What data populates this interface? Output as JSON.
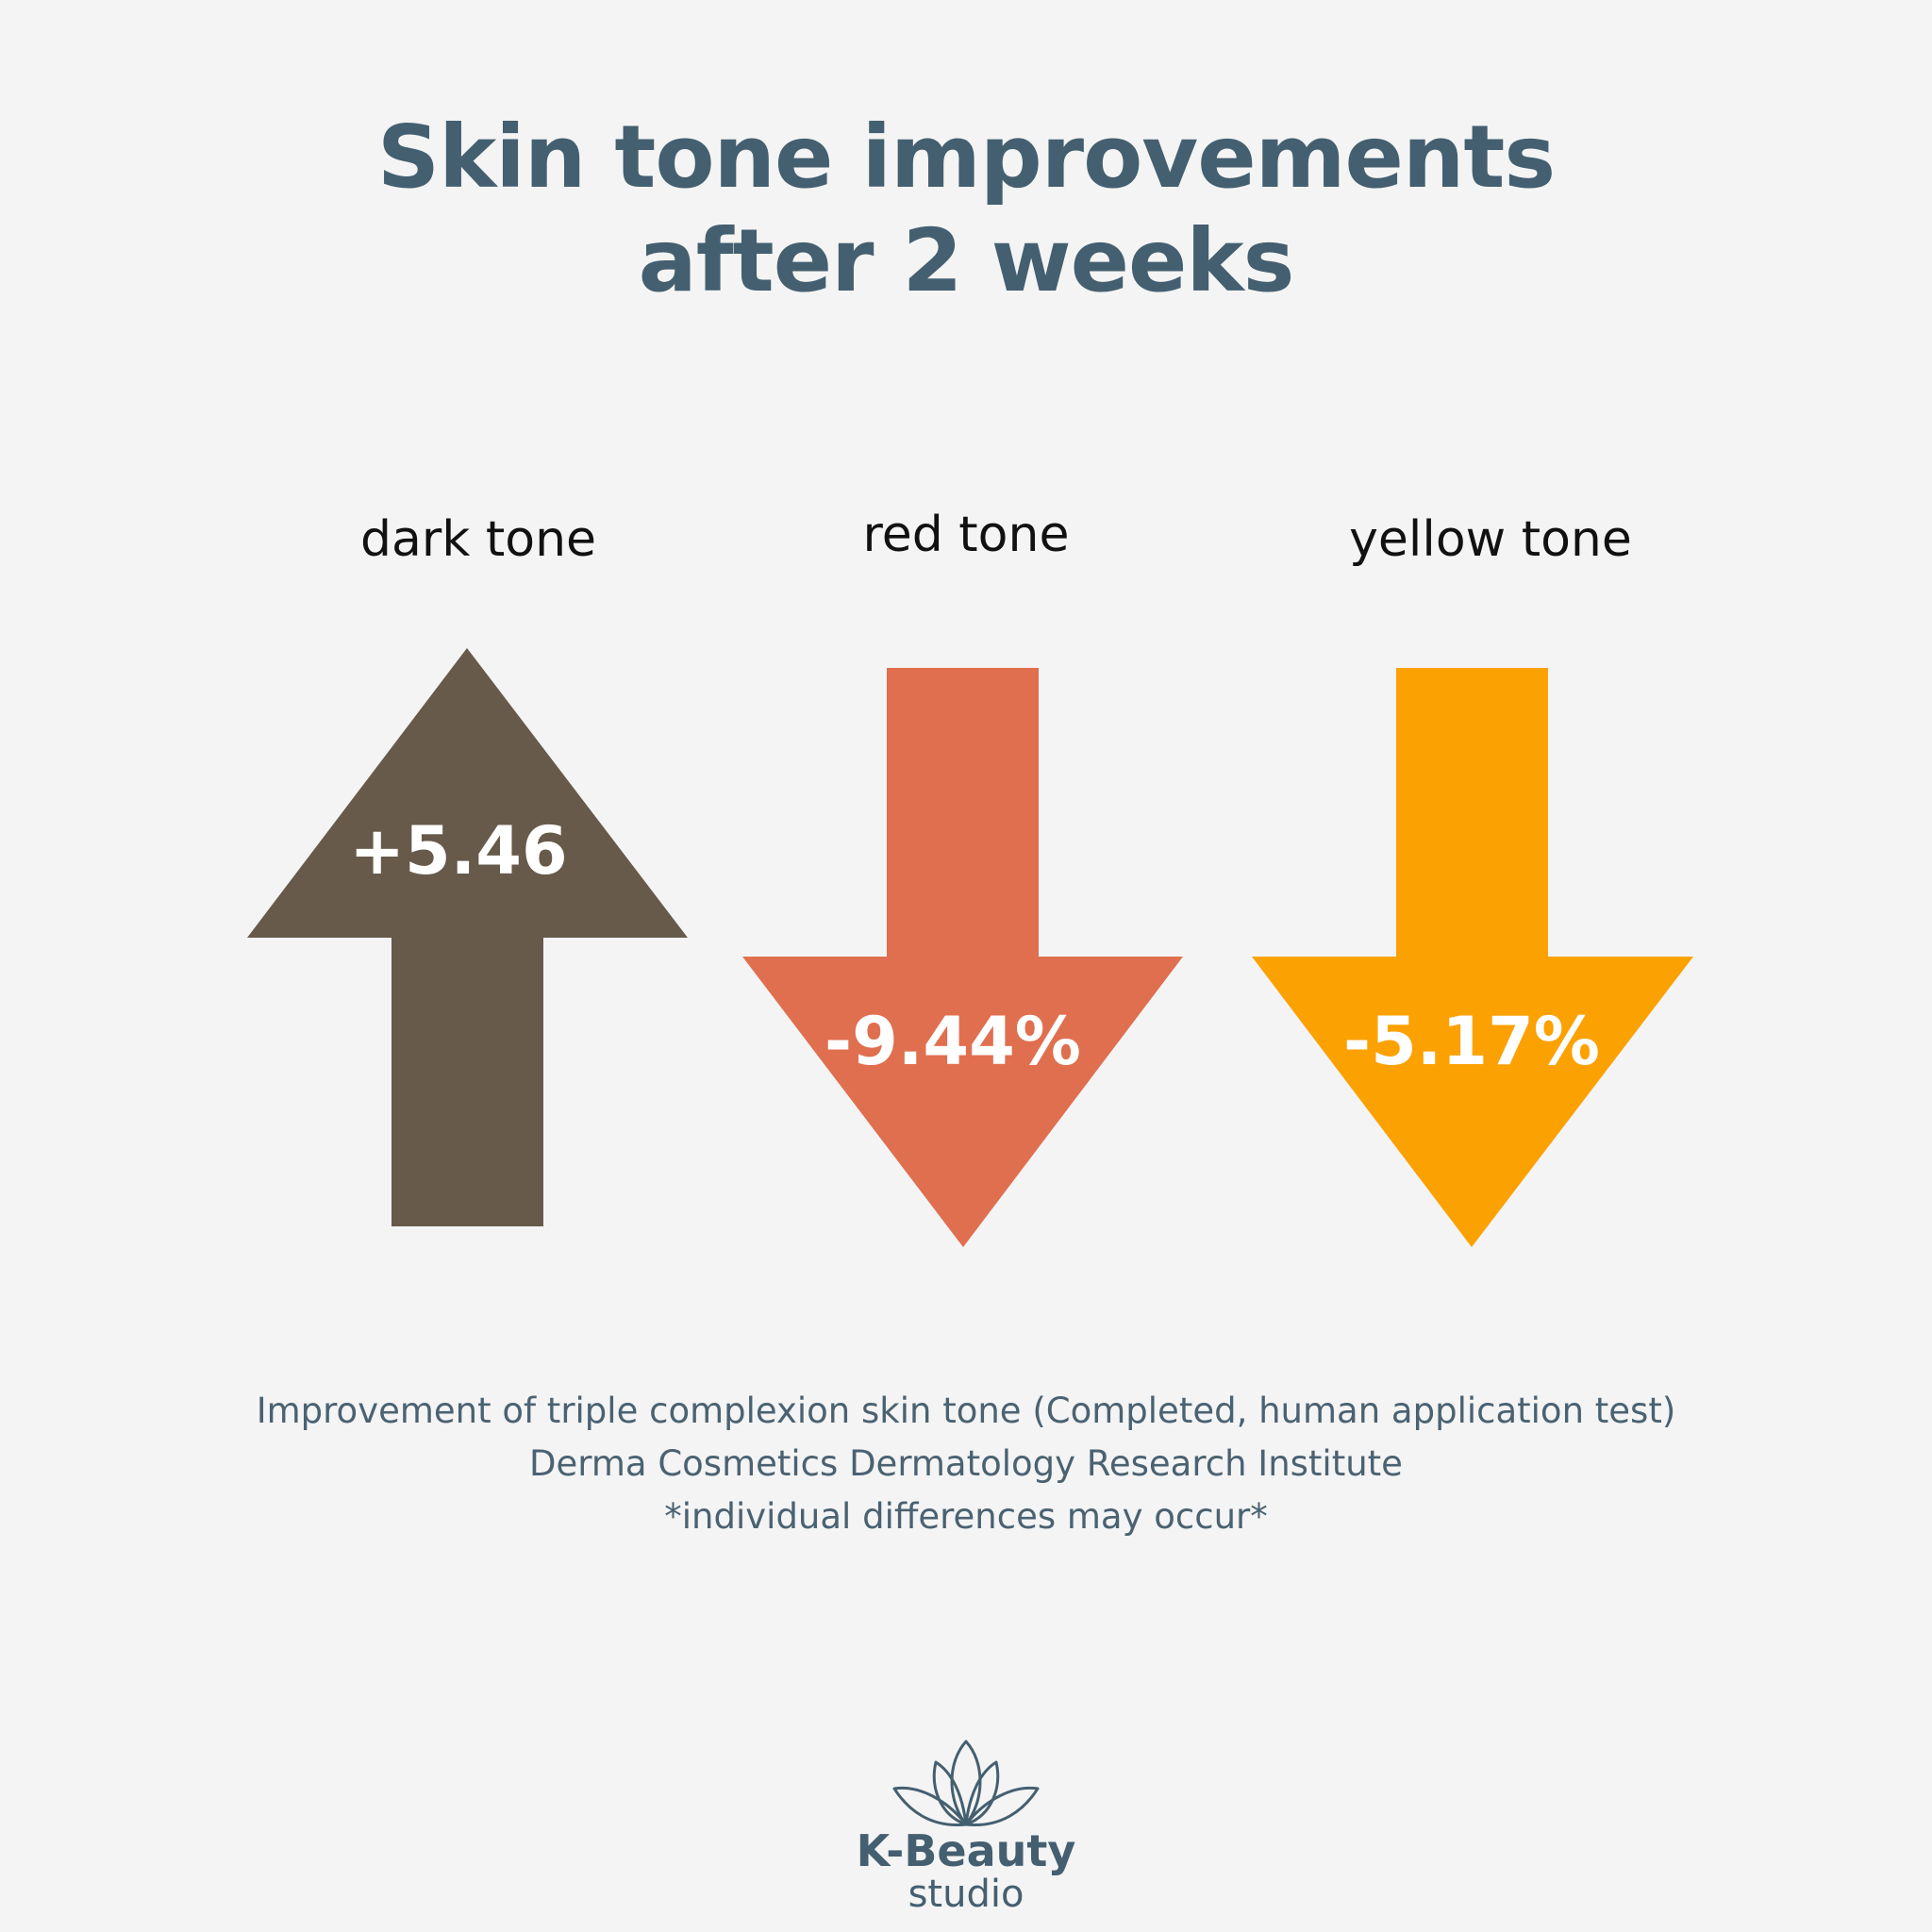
{
  "title": {
    "line1": "Skin tone improvements",
    "line2": "after 2 weeks"
  },
  "metrics": [
    {
      "label": "dark tone",
      "value": "+5.46",
      "direction": "up",
      "color": "#675a4b"
    },
    {
      "label": "red tone",
      "value": "-9.44%",
      "direction": "down",
      "color": "#e06f4f"
    },
    {
      "label": "yellow tone",
      "value": "-5.17%",
      "direction": "down",
      "color": "#fca102"
    }
  ],
  "notes": {
    "line1": "Improvement of triple complexion skin tone (Completed, human application test)",
    "line2": "Derma Cosmetics Dermatology Research Institute",
    "line3": "*individual differences may occur*"
  },
  "logo": {
    "icon": "lotus-icon",
    "name": "K-Beauty",
    "sub": "studio",
    "color": "#445f70"
  }
}
